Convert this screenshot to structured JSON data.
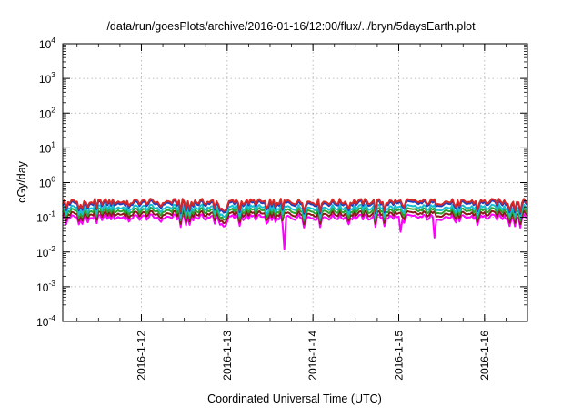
{
  "chart_data": {
    "type": "line",
    "title": "/data/run/goesPlots/archive/2016-01-16/12:00/flux/../bryn/5daysEarth.plot",
    "xlabel": "Coordinated Universal Time (UTC)",
    "ylabel": "cGy/day",
    "yscale": "log",
    "ylim": [
      0.0001,
      10000
    ],
    "xlim": [
      "2016-01-11T02:00",
      "2016-01-16T12:00"
    ],
    "grid": true,
    "legend": "none",
    "y_ticks": [
      {
        "base": "10",
        "exp": "-4"
      },
      {
        "base": "10",
        "exp": "-3"
      },
      {
        "base": "10",
        "exp": "-2"
      },
      {
        "base": "10",
        "exp": "-1"
      },
      {
        "base": "10",
        "exp": "0"
      },
      {
        "base": "10",
        "exp": "1"
      },
      {
        "base": "10",
        "exp": "2"
      },
      {
        "base": "10",
        "exp": "3"
      },
      {
        "base": "10",
        "exp": "4"
      }
    ],
    "x_ticks": [
      {
        "label": "2016-1-12",
        "date": "2016-01-12T00:00"
      },
      {
        "label": "2016-1-13",
        "date": "2016-01-13T00:00"
      },
      {
        "label": "2016-1-14",
        "date": "2016-01-14T00:00"
      },
      {
        "label": "2016-1-15",
        "date": "2016-01-15T00:00"
      },
      {
        "label": "2016-1-16",
        "date": "2016-01-16T00:00"
      }
    ],
    "series": [
      {
        "color": "#d62728",
        "base": 0.28,
        "dips": []
      },
      {
        "color": "#1f3fbf",
        "base": 0.25,
        "dips": []
      },
      {
        "color": "#17becf",
        "base": 0.19,
        "dips": []
      },
      {
        "color": "#2ca02c",
        "base": 0.155,
        "dips": []
      },
      {
        "color": "#8b1a1a",
        "base": 0.125,
        "dips": []
      },
      {
        "color": "#ff00ff",
        "base": 0.1,
        "dips": [
          {
            "date": "2016-01-13T16:00",
            "value": 0.012
          },
          {
            "date": "2016-01-15T00:30",
            "value": 0.038
          },
          {
            "date": "2016-01-15T10:00",
            "value": 0.026
          }
        ]
      }
    ]
  }
}
